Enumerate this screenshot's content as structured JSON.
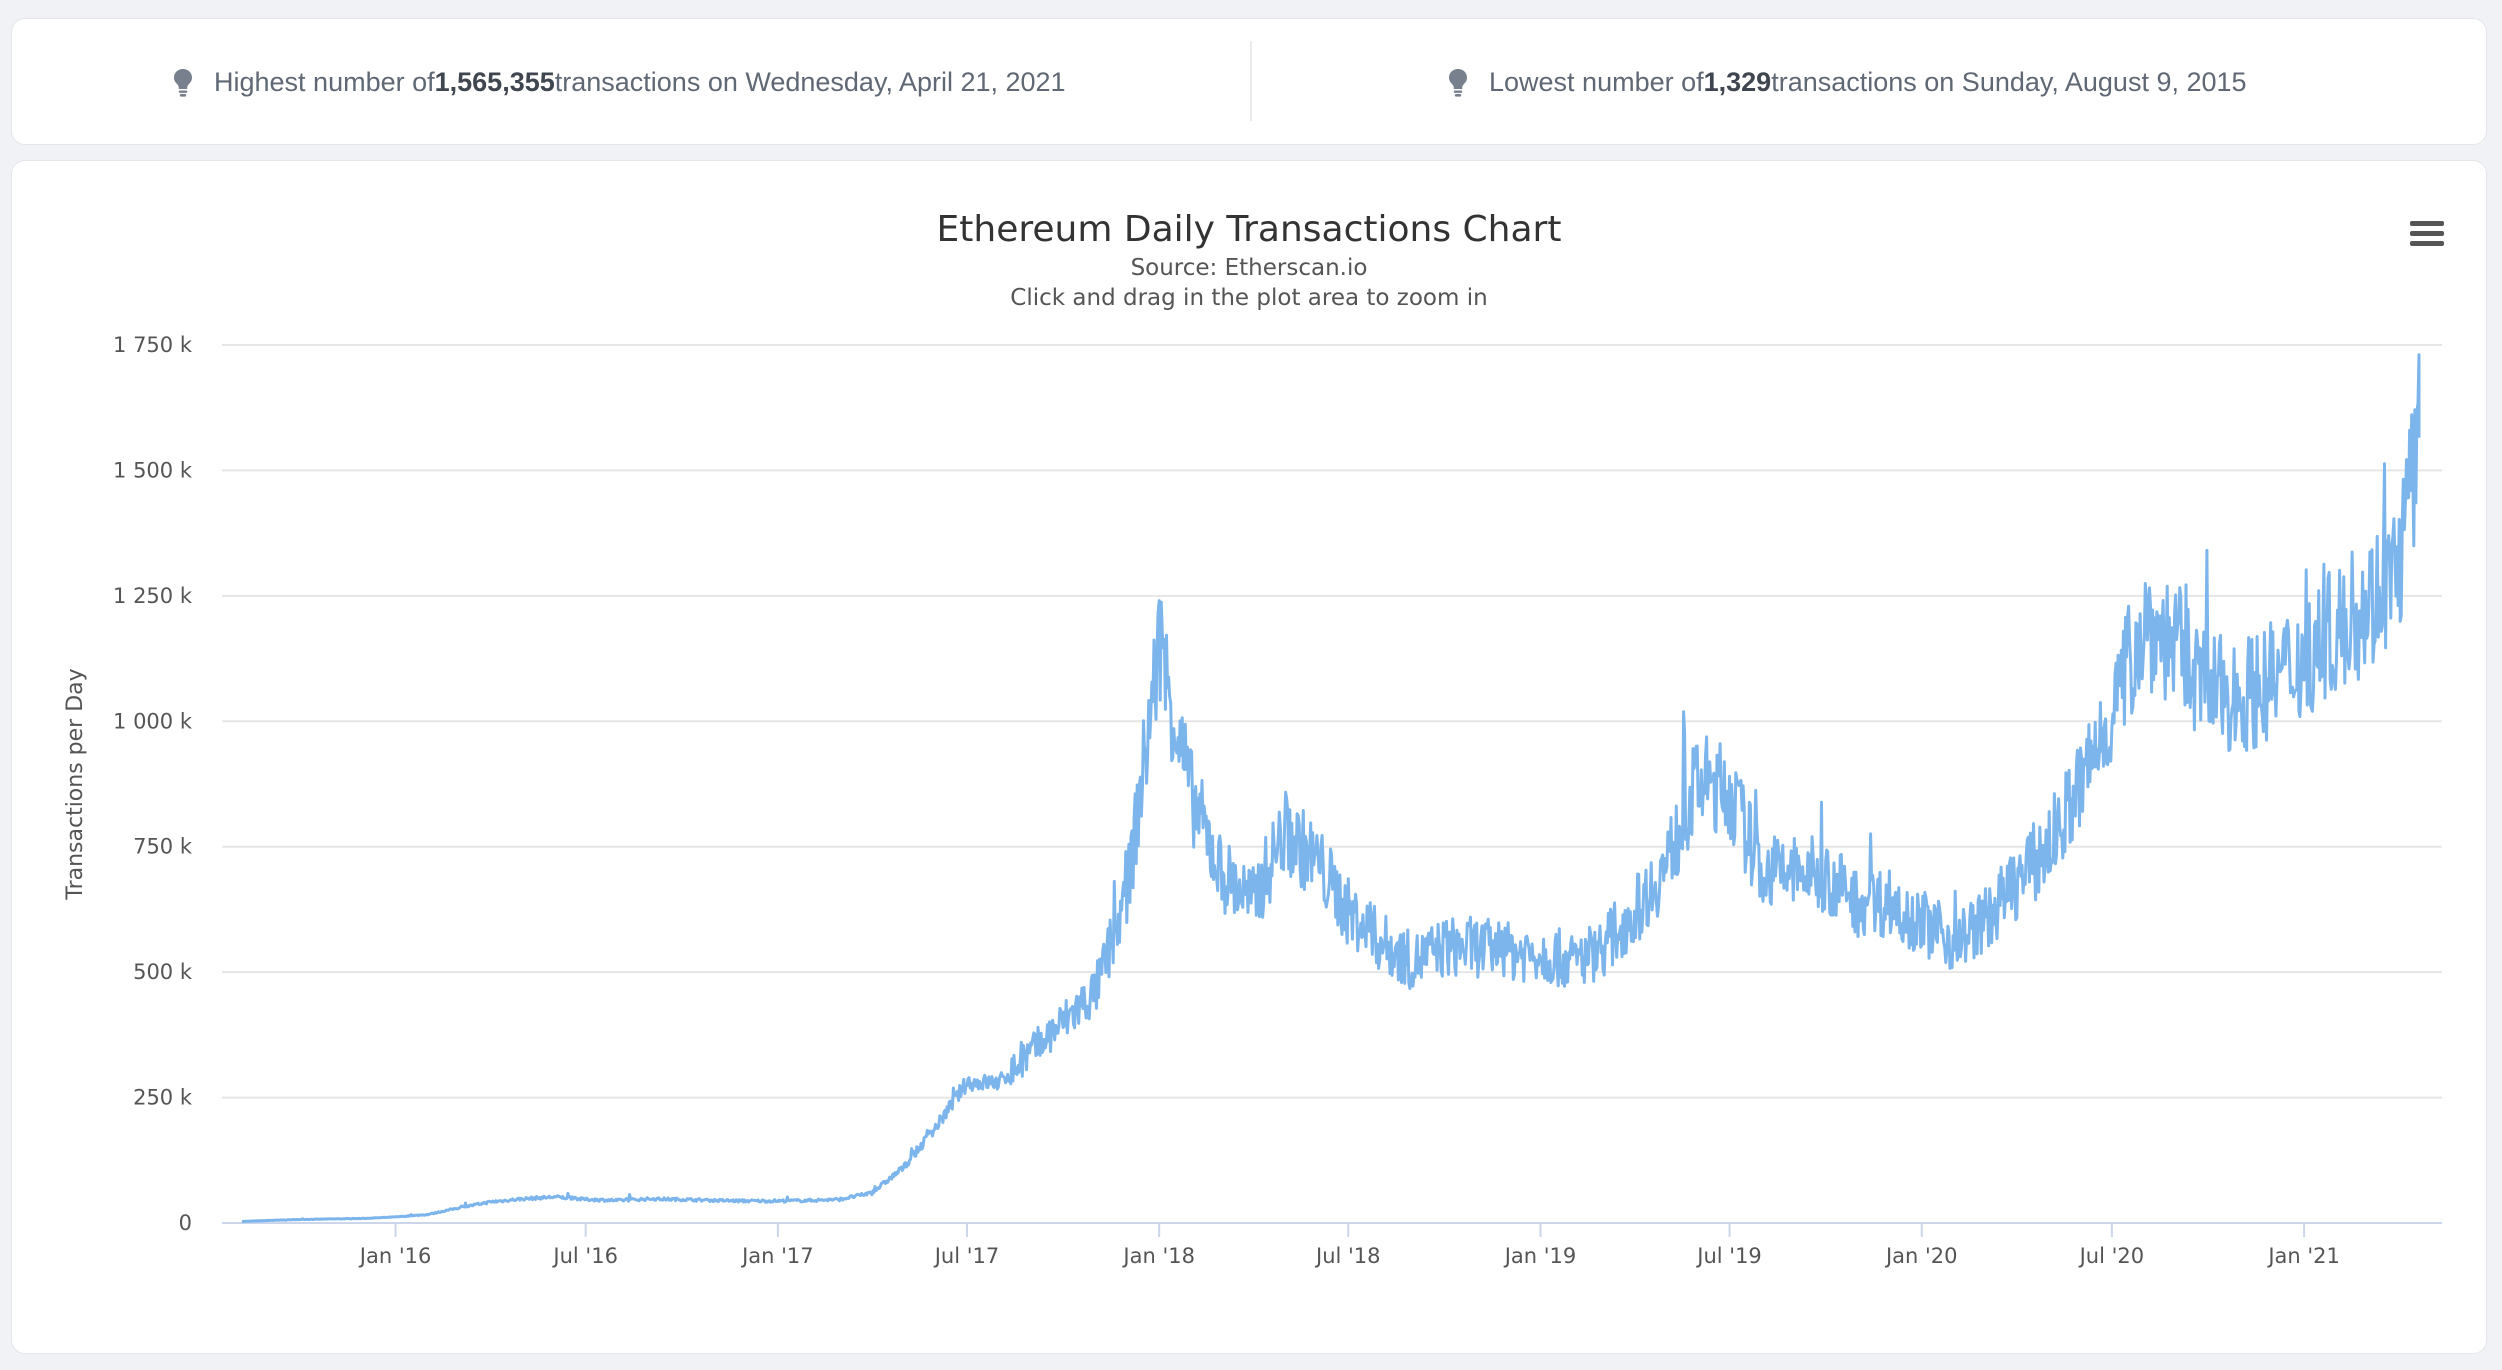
{
  "stats": {
    "highest": {
      "prefix": "Highest number of ",
      "value": "1,565,355",
      "suffix": " transactions on Wednesday, April 21, 2021"
    },
    "lowest": {
      "prefix": "Lowest number of ",
      "value": "1,329",
      "suffix": " transactions on Sunday, August 9, 2015"
    }
  },
  "colors": {
    "line": "#7cb5ec",
    "grid": "#e6e6e6",
    "axis": "#ccd6eb"
  },
  "chart_data": {
    "type": "line",
    "title": "Ethereum Daily Transactions Chart",
    "subtitle": "Source: Etherscan.io",
    "subtitle2": "Click and drag in the plot area to zoom in",
    "ylabel": "Transactions per Day",
    "xlabel": "",
    "ylim": [
      0,
      1750000
    ],
    "yticks": [
      0,
      250000,
      500000,
      750000,
      1000000,
      1250000,
      1500000,
      1750000
    ],
    "ytick_labels": [
      "0",
      "250 k",
      "500 k",
      "750 k",
      "1 000 k",
      "1 250 k",
      "1 500 k",
      "1 750 k"
    ],
    "xlim": [
      "2015-08-07",
      "2021-04-21"
    ],
    "xticks": [
      "2016-01-01",
      "2016-07-01",
      "2017-01-01",
      "2017-07-01",
      "2018-01-01",
      "2018-07-01",
      "2019-01-01",
      "2019-07-01",
      "2020-01-01",
      "2020-07-01",
      "2021-01-01"
    ],
    "xtick_labels": [
      "Jan '16",
      "Jul '16",
      "Jan '17",
      "Jul '17",
      "Jan '18",
      "Jul '18",
      "Jan '19",
      "Jul '19",
      "Jan '20",
      "Jul '20",
      "Jan '21"
    ],
    "grid": true,
    "legend": "none",
    "series": [
      {
        "x": [
          "2015-08-07",
          "2015-09-01",
          "2015-10-01",
          "2015-11-01",
          "2015-12-01",
          "2016-01-01",
          "2016-02-01",
          "2016-03-01",
          "2016-04-01",
          "2016-05-01",
          "2016-06-01",
          "2016-07-01",
          "2016-08-01",
          "2016-09-01",
          "2016-10-01",
          "2016-11-01",
          "2016-12-01",
          "2017-01-01",
          "2017-02-01",
          "2017-03-01",
          "2017-04-01",
          "2017-05-01",
          "2017-06-01",
          "2017-07-01",
          "2017-08-01",
          "2017-09-01",
          "2017-10-01",
          "2017-11-01",
          "2017-12-01",
          "2018-01-01",
          "2018-02-01",
          "2018-03-01",
          "2018-04-01",
          "2018-05-01",
          "2018-06-01",
          "2018-07-01",
          "2018-08-01",
          "2018-09-01",
          "2018-10-01",
          "2018-11-01",
          "2018-12-01",
          "2019-01-01",
          "2019-02-01",
          "2019-03-01",
          "2019-04-01",
          "2019-05-01",
          "2019-06-01",
          "2019-07-01",
          "2019-08-01",
          "2019-09-01",
          "2019-10-01",
          "2019-11-01",
          "2019-12-01",
          "2020-01-01",
          "2020-02-01",
          "2020-03-01",
          "2020-04-01",
          "2020-05-01",
          "2020-06-01",
          "2020-07-01",
          "2020-08-01",
          "2020-09-01",
          "2020-10-01",
          "2020-11-01",
          "2020-12-01",
          "2021-01-01",
          "2021-02-01",
          "2021-03-01",
          "2021-04-01",
          "2021-04-21"
        ],
        "values": [
          3000,
          5000,
          7000,
          8000,
          9000,
          12000,
          17000,
          30000,
          42000,
          48000,
          52000,
          47000,
          45000,
          48000,
          47000,
          45000,
          44000,
          44000,
          45000,
          47000,
          60000,
          110000,
          190000,
          280000,
          280000,
          340000,
          400000,
          460000,
          650000,
          1150000,
          850000,
          700000,
          640000,
          780000,
          720000,
          620000,
          560000,
          520000,
          550000,
          550000,
          540000,
          540000,
          520000,
          550000,
          620000,
          710000,
          880000,
          860000,
          700000,
          700000,
          690000,
          640000,
          640000,
          600000,
          560000,
          600000,
          680000,
          750000,
          870000,
          1020000,
          1200000,
          1150000,
          1060000,
          1050000,
          1080000,
          1130000,
          1180000,
          1230000,
          1300000,
          1565000
        ]
      }
    ]
  }
}
